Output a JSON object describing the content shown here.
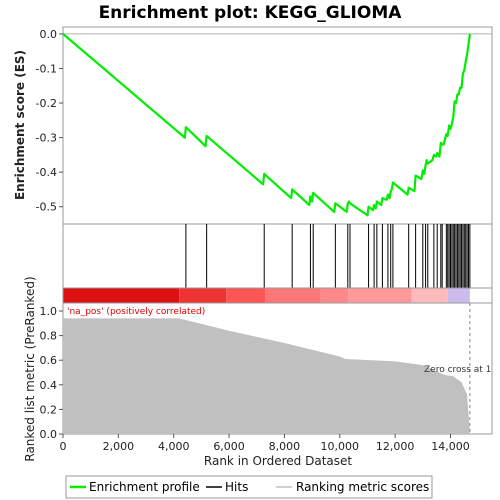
{
  "title": "Enrichment plot: KEGG_GLIOMA",
  "colors": {
    "es_line": "#00ee00",
    "hit": "#000000",
    "metric_fill": "#c0c0c0",
    "pos_label": "#dd0000",
    "zero_cross": "#888888",
    "zero_line": "#b0b0b0"
  },
  "chart_data": {
    "type": "line",
    "es_panel": {
      "ylabel": "Enrichment score (ES)",
      "ylim": [
        -0.55,
        0.02
      ],
      "yticks": [
        "0.0",
        "-0.1",
        "-0.2",
        "-0.3",
        "-0.4",
        "-0.5"
      ],
      "ytick_values": [
        0.0,
        -0.1,
        -0.2,
        -0.3,
        -0.4,
        -0.5
      ],
      "series": [
        {
          "name": "Enrichment profile",
          "x": [
            0,
            4400,
            4440,
            5150,
            5190,
            7230,
            7270,
            8240,
            8280,
            8900,
            8940,
            9000,
            9040,
            9800,
            9840,
            10250,
            10290,
            10330,
            10370,
            11000,
            11040,
            11200,
            11240,
            11300,
            11340,
            11500,
            11540,
            11700,
            11740,
            11800,
            11840,
            11880,
            11920,
            12450,
            12490,
            12700,
            12740,
            12950,
            13000,
            13050,
            13100,
            13140,
            13180,
            13350,
            13400,
            13480,
            13520,
            13600,
            13650,
            13700,
            13750,
            13850,
            13900,
            13950,
            14000,
            14050,
            14100,
            14150,
            14200,
            14250,
            14300,
            14350,
            14400,
            14450,
            14500,
            14550,
            14600,
            14650,
            14700
          ],
          "y": [
            0.0,
            -0.3,
            -0.27,
            -0.325,
            -0.295,
            -0.435,
            -0.405,
            -0.475,
            -0.45,
            -0.495,
            -0.47,
            -0.485,
            -0.46,
            -0.515,
            -0.49,
            -0.515,
            -0.49,
            -0.485,
            -0.49,
            -0.525,
            -0.5,
            -0.51,
            -0.495,
            -0.505,
            -0.485,
            -0.495,
            -0.475,
            -0.48,
            -0.465,
            -0.475,
            -0.455,
            -0.45,
            -0.43,
            -0.465,
            -0.445,
            -0.455,
            -0.41,
            -0.42,
            -0.395,
            -0.405,
            -0.38,
            -0.365,
            -0.375,
            -0.365,
            -0.35,
            -0.355,
            -0.345,
            -0.355,
            -0.315,
            -0.32,
            -0.32,
            -0.29,
            -0.295,
            -0.265,
            -0.275,
            -0.26,
            -0.24,
            -0.195,
            -0.2,
            -0.175,
            -0.175,
            -0.155,
            -0.155,
            -0.115,
            -0.105,
            -0.08,
            -0.06,
            -0.03,
            0.0
          ]
        }
      ]
    },
    "hits": [
      4440,
      5190,
      7270,
      8280,
      8940,
      9040,
      9840,
      10290,
      10370,
      11040,
      11240,
      11340,
      11540,
      11740,
      11840,
      11920,
      12490,
      12740,
      13000,
      13100,
      13180,
      13400,
      13520,
      13650,
      13700,
      13850,
      13900,
      13950,
      14000,
      14050,
      14100,
      14150,
      14200,
      14250,
      14300,
      14350,
      14400,
      14450,
      14500,
      14550,
      14600,
      14650,
      14700
    ],
    "heatmap_colors": [
      "#dd1111",
      "#ee3333",
      "#ff5555",
      "#ff7777",
      "#ff8888",
      "#ff9999",
      "#ffbbbb",
      "#ccbbee"
    ],
    "heatmap_edges": [
      0,
      4200,
      5900,
      7300,
      9300,
      10300,
      12600,
      13900,
      14700
    ],
    "metric_panel": {
      "ylabel": "Ranked list metric (PreRanked)",
      "ylim": [
        0.0,
        1.0
      ],
      "yticks": [
        "0.0",
        "0.2",
        "0.4",
        "0.6",
        "0.8",
        "1.0"
      ],
      "ytick_values": [
        0.0,
        0.2,
        0.4,
        0.6,
        0.8,
        1.0
      ],
      "x": [
        0,
        4200,
        6000,
        8000,
        10000,
        10200,
        12000,
        13000,
        13800,
        14100,
        14400,
        14600,
        14700
      ],
      "values": [
        0.94,
        0.94,
        0.84,
        0.74,
        0.63,
        0.61,
        0.59,
        0.56,
        0.48,
        0.47,
        0.42,
        0.32,
        0.0
      ],
      "pos_label": "'na_pos' (positively correlated)",
      "zero_cross_label": "Zero cross at 1",
      "zero_cross_x": 14700
    },
    "xlabel": "Rank in Ordered Dataset",
    "xlim": [
      0,
      15500
    ],
    "xticks": [
      "0",
      "2,000",
      "4,000",
      "6,000",
      "8,000",
      "10,000",
      "12,000",
      "14,000"
    ],
    "xtick_values": [
      0,
      2000,
      4000,
      6000,
      8000,
      10000,
      12000,
      14000
    ],
    "legend": {
      "position": "bottom",
      "items": [
        "Enrichment profile",
        "Hits",
        "Ranking metric scores"
      ]
    }
  }
}
